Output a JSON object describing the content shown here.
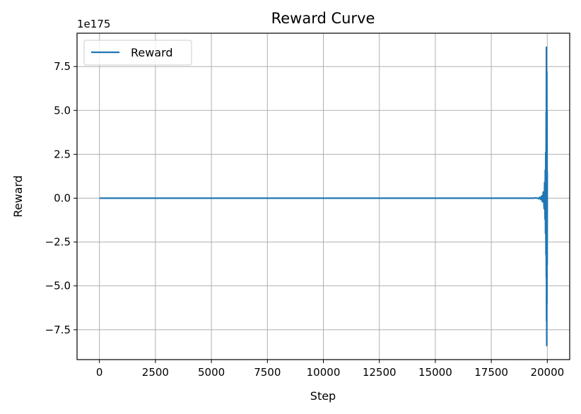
{
  "chart_data": {
    "type": "line",
    "title": "Reward Curve",
    "xlabel": "Step",
    "ylabel": "Reward",
    "offset_text": "1e175",
    "xlim": [
      -1000,
      21000
    ],
    "ylim": [
      -9.2,
      9.4
    ],
    "xticks": [
      0,
      2500,
      5000,
      7500,
      10000,
      12500,
      15000,
      17500,
      20000
    ],
    "xtick_labels": [
      "0",
      "2500",
      "5000",
      "7500",
      "10000",
      "12500",
      "15000",
      "17500",
      "20000"
    ],
    "yticks": [
      -7.5,
      -5.0,
      -2.5,
      0.0,
      2.5,
      5.0,
      7.5
    ],
    "ytick_labels": [
      "−7.5",
      "−5.0",
      "−2.5",
      "0.0",
      "2.5",
      "5.0",
      "7.5"
    ],
    "grid": true,
    "legend_position": "top-left",
    "series": [
      {
        "name": "Reward",
        "color": "#1f77b4",
        "x": [
          0,
          19400,
          19500,
          19600,
          19650,
          19700,
          19740,
          19780,
          19820,
          19860,
          19880,
          19900,
          19910,
          19920,
          19930,
          19940,
          19950,
          19955,
          19960,
          19965,
          19970,
          19975,
          19980,
          19985,
          19990,
          19995,
          20000
        ],
        "y": [
          0,
          0,
          0.02,
          -0.03,
          0.05,
          -0.08,
          0.12,
          -0.2,
          0.35,
          -0.6,
          0.9,
          -1.2,
          1.6,
          -2.0,
          2.6,
          -3.2,
          4.9,
          -4.5,
          8.6,
          -7.0,
          6.5,
          -8.4,
          7.2,
          -6.0,
          5.0,
          -3.8,
          1.5
        ]
      }
    ]
  }
}
